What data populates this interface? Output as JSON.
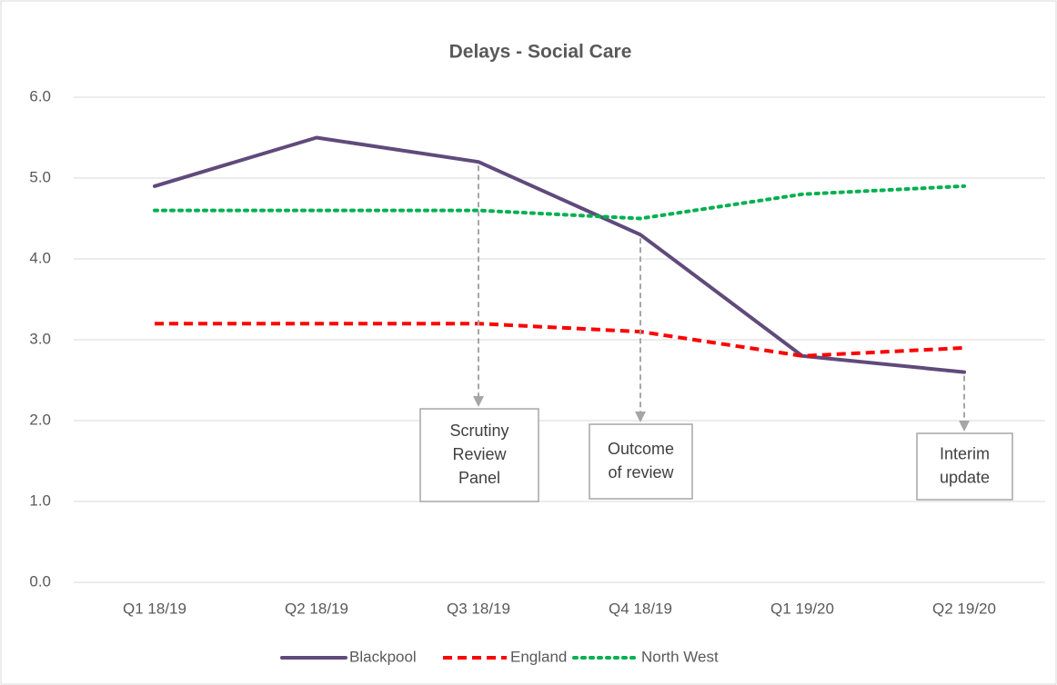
{
  "chart_data": {
    "type": "line",
    "title": "Delays - Social Care",
    "categories": [
      "Q1 18/19",
      "Q2 18/19",
      "Q3 18/19",
      "Q4 18/19",
      "Q1 19/20",
      "Q2 19/20"
    ],
    "series": [
      {
        "name": "Blackpool",
        "color": "#604a7b",
        "style": "solid",
        "values": [
          4.9,
          5.5,
          5.2,
          4.3,
          2.8,
          2.6
        ]
      },
      {
        "name": "England",
        "color": "#ff0000",
        "style": "dashed",
        "values": [
          3.2,
          3.2,
          3.2,
          3.1,
          2.8,
          2.9
        ]
      },
      {
        "name": "North West",
        "color": "#00b050",
        "style": "dotted",
        "values": [
          4.6,
          4.6,
          4.6,
          4.5,
          4.8,
          4.9
        ]
      }
    ],
    "ylim": [
      0,
      6
    ],
    "yticks": [
      {
        "value": 0,
        "label": "0.0"
      },
      {
        "value": 1,
        "label": "1.0"
      },
      {
        "value": 2,
        "label": "2.0"
      },
      {
        "value": 3,
        "label": "3.0"
      },
      {
        "value": 4,
        "label": "4.0"
      },
      {
        "value": 5,
        "label": "5.0"
      },
      {
        "value": 6,
        "label": "6.0"
      }
    ],
    "grid": true,
    "legend": "bottom",
    "annotations": [
      {
        "text": [
          "Scrutiny",
          "Review",
          "Panel"
        ]
      },
      {
        "text": [
          "Outcome",
          "of review"
        ]
      },
      {
        "text": [
          "Interim",
          "update"
        ]
      }
    ]
  }
}
